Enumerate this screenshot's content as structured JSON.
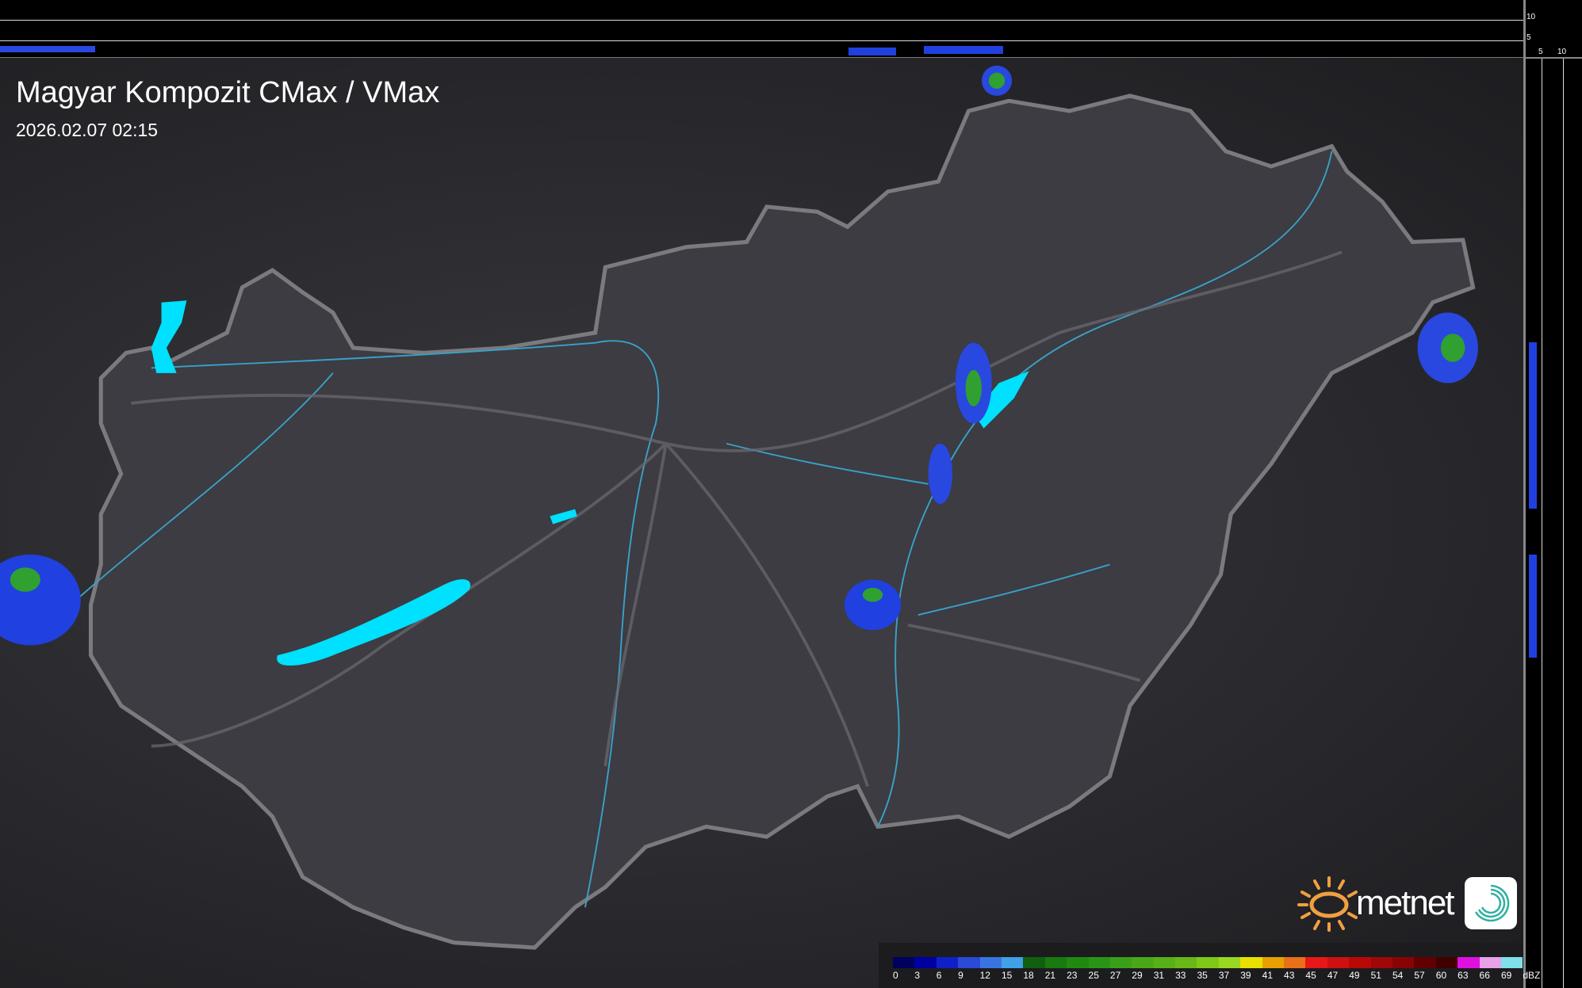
{
  "header": {
    "title": "Magyar Kompozit CMax / VMax",
    "timestamp": "2026.02.07 02:15"
  },
  "profile_axes": {
    "top_ticks": [
      "10",
      "5"
    ],
    "right_ticks": [
      "5",
      "10"
    ]
  },
  "logo": {
    "brand": "metnet",
    "brand_color": "#f0a040",
    "icon": "spiral-app-icon"
  },
  "legend": {
    "unit": "dBZ",
    "values": [
      "0",
      "3",
      "6",
      "9",
      "12",
      "15",
      "18",
      "21",
      "23",
      "25",
      "27",
      "29",
      "31",
      "33",
      "35",
      "37",
      "39",
      "41",
      "43",
      "45",
      "47",
      "49",
      "51",
      "54",
      "57",
      "60",
      "63",
      "66",
      "69"
    ],
    "colors": [
      "#00005e",
      "#0000a0",
      "#1020c8",
      "#2a4ad8",
      "#3a74e0",
      "#40a0e8",
      "#106010",
      "#187a10",
      "#208a10",
      "#2a9418",
      "#3aa018",
      "#4aa818",
      "#58b018",
      "#68b818",
      "#80c818",
      "#98d820",
      "#e8e000",
      "#e8a000",
      "#e87018",
      "#e81818",
      "#d01010",
      "#b80808",
      "#a00808",
      "#880404",
      "#600000",
      "#400000",
      "#e010e0",
      "#e8a0e8",
      "#80e0e8"
    ]
  },
  "map_colors": {
    "border": "#7a7a7f",
    "rivers": "#3aa0c8",
    "lakes": "#00e0ff",
    "echo_light": "#2040e0",
    "echo_core": "#30a030"
  }
}
